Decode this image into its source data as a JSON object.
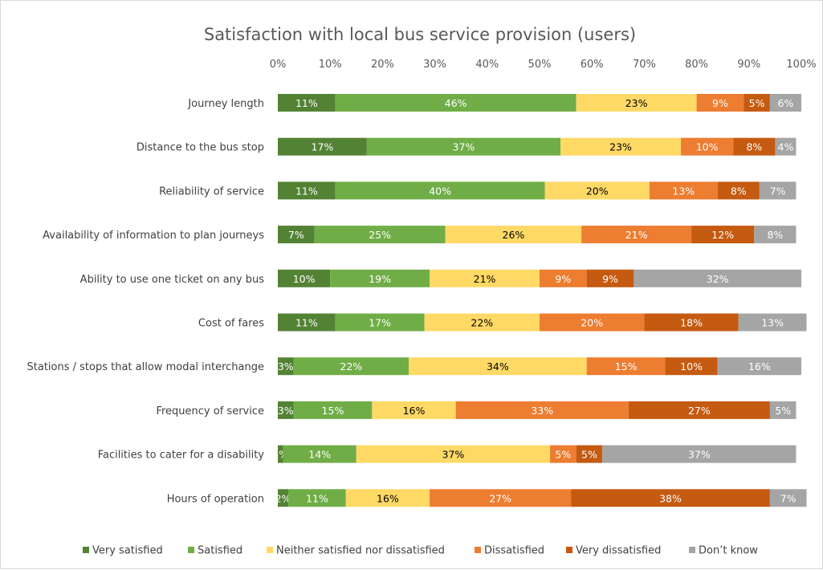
{
  "chart_data": {
    "type": "bar",
    "orientation": "horizontal",
    "stacked": true,
    "title": "Satisfaction with local bus service provision (users)",
    "xlabel": "",
    "ylabel": "",
    "xlim": [
      0,
      100
    ],
    "x_ticks": [
      "0%",
      "10%",
      "20%",
      "30%",
      "40%",
      "50%",
      "60%",
      "70%",
      "80%",
      "90%",
      "100%"
    ],
    "legend_position": "bottom",
    "grid": false,
    "categories": [
      "Journey length",
      "Distance to the bus stop",
      "Reliability of service",
      "Availability of information to plan journeys",
      "Ability to use one ticket on any bus",
      "Cost of fares",
      "Stations / stops that allow modal interchange",
      "Frequency of service",
      "Facilities to cater for a disability",
      "Hours of operation"
    ],
    "series": [
      {
        "name": "Very satisfied",
        "color": "#548235",
        "label_color": "#ffffff",
        "values": [
          11,
          17,
          11,
          7,
          10,
          11,
          3,
          3,
          1,
          2
        ]
      },
      {
        "name": "Satisfied",
        "color": "#70ad47",
        "label_color": "#ffffff",
        "values": [
          46,
          37,
          40,
          25,
          19,
          17,
          22,
          15,
          14,
          11
        ]
      },
      {
        "name": "Neither satisfied nor dissatisfied",
        "color": "#ffd966",
        "label_color": "#000000",
        "values": [
          23,
          23,
          20,
          26,
          21,
          22,
          34,
          16,
          37,
          16
        ]
      },
      {
        "name": "Dissatisfied",
        "color": "#ed7d31",
        "label_color": "#ffffff",
        "values": [
          9,
          10,
          13,
          21,
          9,
          20,
          15,
          33,
          5,
          27
        ]
      },
      {
        "name": "Very dissatisfied",
        "color": "#c55a11",
        "label_color": "#ffffff",
        "values": [
          5,
          8,
          8,
          12,
          9,
          18,
          10,
          27,
          5,
          38
        ]
      },
      {
        "name": "Don’t know",
        "color": "#a5a5a5",
        "label_color": "#ffffff",
        "values": [
          6,
          4,
          7,
          8,
          32,
          13,
          16,
          5,
          37,
          7
        ]
      }
    ]
  }
}
